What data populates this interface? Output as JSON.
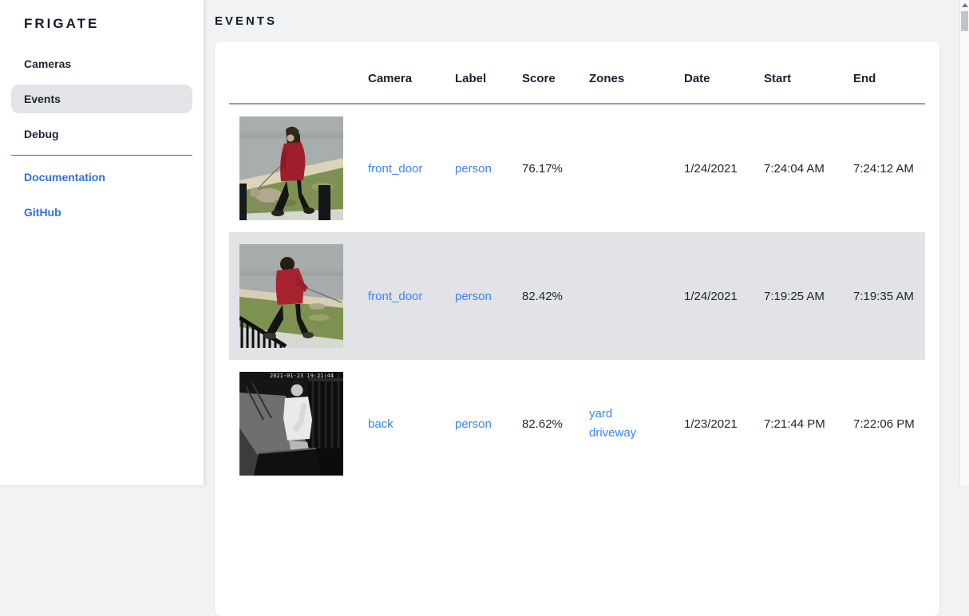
{
  "app": {
    "name": "FRIGATE"
  },
  "sidebar": {
    "logo": "FRIGATE",
    "nav": [
      {
        "label": "Cameras",
        "active": false
      },
      {
        "label": "Events",
        "active": true
      },
      {
        "label": "Debug",
        "active": false
      }
    ],
    "links": [
      {
        "label": "Documentation"
      },
      {
        "label": "GitHub"
      }
    ]
  },
  "header": {
    "title": "EVENTS"
  },
  "colors": {
    "link_blue": "#3b82f6",
    "row_highlight": "#e2e3e7",
    "text_navy": "#19212f",
    "page_background": "#f1f2f4"
  },
  "table": {
    "columns": [
      "",
      "Camera",
      "Label",
      "Score",
      "Zones",
      "Date",
      "Start",
      "End"
    ],
    "rows": [
      {
        "thumb": "front-door-day-1",
        "thumb_description": "daytime camera crop: woman in red coat walking a dog past posts",
        "camera": "front_door",
        "label": "person",
        "score": "76.17%",
        "zones": [],
        "date": "1/24/2021",
        "start": "7:24:04 AM",
        "end": "7:24:12 AM",
        "highlighted": false
      },
      {
        "thumb": "front-door-day-2",
        "thumb_description": "daytime camera crop: woman in red hoodie stepping left, railing in corner",
        "camera": "front_door",
        "label": "person",
        "score": "82.42%",
        "zones": [],
        "date": "1/24/2021",
        "start": "7:19:25 AM",
        "end": "7:19:35 AM",
        "highlighted": true
      },
      {
        "thumb": "back-night-1",
        "thumb_description": "black-and-white night camera crop: man in white long-sleeve shirt",
        "thumb_overlay": "2021-01-23 19:21:44",
        "camera": "back",
        "label": "person",
        "score": "82.62%",
        "zones": [
          "yard",
          "driveway"
        ],
        "date": "1/23/2021",
        "start": "7:21:44 PM",
        "end": "7:22:06 PM",
        "highlighted": false
      }
    ]
  }
}
